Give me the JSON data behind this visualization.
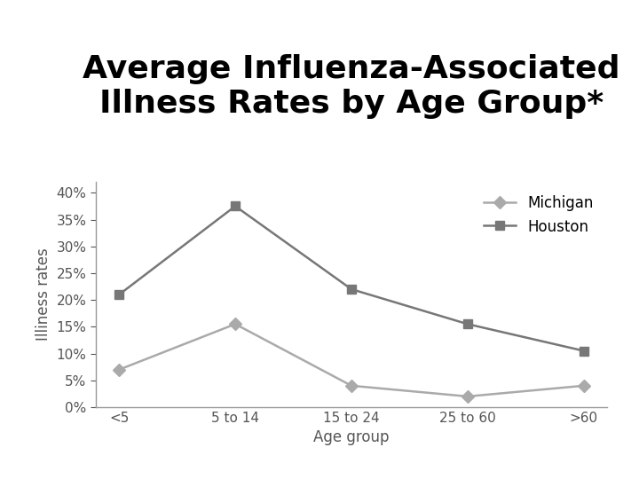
{
  "title": "Average Influenza-Associated\nIllness Rates by Age Group*",
  "xlabel": "Age group",
  "ylabel": "Illiness rates",
  "categories": [
    "<5",
    "5 to 14",
    "15 to 24",
    "25 to 60",
    ">60"
  ],
  "michigan": [
    0.07,
    0.155,
    0.04,
    0.02,
    0.04
  ],
  "houston": [
    0.21,
    0.375,
    0.22,
    0.155,
    0.105
  ],
  "michigan_color": "#aaaaaa",
  "houston_color": "#777777",
  "michigan_label": "Michigan",
  "houston_label": "Houston",
  "ylim": [
    0,
    0.42
  ],
  "yticks": [
    0.0,
    0.05,
    0.1,
    0.15,
    0.2,
    0.25,
    0.3,
    0.35,
    0.4
  ],
  "background_color": "#ffffff",
  "title_fontsize": 26,
  "axis_label_fontsize": 12,
  "tick_fontsize": 11,
  "legend_fontsize": 12,
  "marker_michigan": "D",
  "marker_houston": "s",
  "linewidth": 1.8,
  "markersize": 7
}
